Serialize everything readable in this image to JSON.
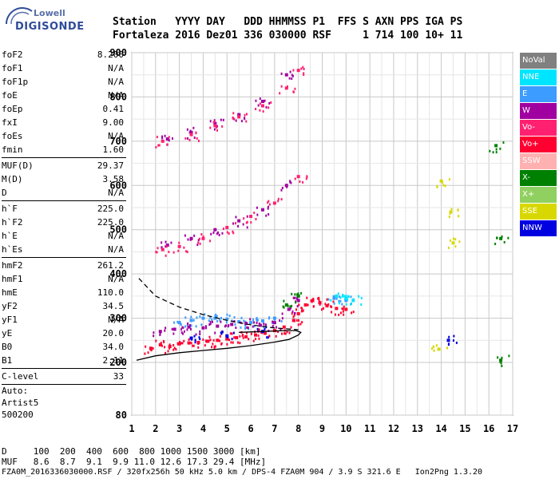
{
  "logo": {
    "line1": "Lowell",
    "line2": "DIGISONDE"
  },
  "header": {
    "line1": "Station   YYYY DAY   DDD HHMMSS P1  FFS S AXN PPS IGA PS",
    "line2": "Fortaleza 2016 Dez01 336 030000 RSF     1 714 100 10+ 11"
  },
  "params": [
    {
      "k": "foF2",
      "v": "8.200"
    },
    {
      "k": "foF1",
      "v": "N/A"
    },
    {
      "k": "foF1p",
      "v": "N/A"
    },
    {
      "k": "foE",
      "v": "N/A"
    },
    {
      "k": "foEp",
      "v": "0.41"
    },
    {
      "k": "fxI",
      "v": "9.00"
    },
    {
      "k": "foEs",
      "v": "N/A"
    },
    {
      "k": "fmin",
      "v": "1.60"
    },
    {
      "sep": true
    },
    {
      "k": "MUF(D)",
      "v": "29.37"
    },
    {
      "k": "M(D)",
      "v": "3.58"
    },
    {
      "k": "D",
      "v": "N/A"
    },
    {
      "sep": true
    },
    {
      "k": "h`F",
      "v": "225.0"
    },
    {
      "k": "h`F2",
      "v": "225.0"
    },
    {
      "k": "h`E",
      "v": "N/A"
    },
    {
      "k": "h`Es",
      "v": "N/A"
    },
    {
      "sep": true
    },
    {
      "k": "hmF2",
      "v": "261.2"
    },
    {
      "k": "hmF1",
      "v": "N/A"
    },
    {
      "k": "hmE",
      "v": "110.0"
    },
    {
      "k": "yF2",
      "v": "34.5"
    },
    {
      "k": "yF1",
      "v": "N/A"
    },
    {
      "k": "yE",
      "v": "20.0"
    },
    {
      "k": "B0",
      "v": "34.0"
    },
    {
      "k": "B1",
      "v": "2.11"
    },
    {
      "sep": true
    },
    {
      "k": "C-level",
      "v": "33"
    },
    {
      "sep": true
    }
  ],
  "auto": {
    "l1": "Auto:",
    "l2": "Artist5",
    "l3": "500200"
  },
  "bottom": {
    "d_row": "D     100  200  400  600  800 1000 1500 3000 [km]",
    "muf_row": "MUF   8.6  8.7  9.1  9.9 11.0 12.6 17.3 29.4 [MHz]",
    "file_row": "FZA0M_2016336030000.RSF / 320fx256h 50 kHz 5.0 km / DPS-4 FZA0M 904 / 3.9 S 321.6 E   Ion2Png 1.3.20"
  },
  "legend": [
    {
      "label": "NoVal",
      "color": "#808080"
    },
    {
      "label": "NNE",
      "color": "#00e5ff"
    },
    {
      "label": "E",
      "color": "#3c9cff"
    },
    {
      "label": "W",
      "color": "#a000a0"
    },
    {
      "label": "Vo-",
      "color": "#ff2070"
    },
    {
      "label": "Vo+",
      "color": "#ff0030"
    },
    {
      "label": "SSW",
      "color": "#ffb0b0"
    },
    {
      "label": "X-",
      "color": "#008000"
    },
    {
      "label": "X+",
      "color": "#90d060"
    },
    {
      "label": "SSE",
      "color": "#d8d800"
    },
    {
      "label": "NNW",
      "color": "#0000e0"
    }
  ],
  "chart_data": {
    "type": "scatter",
    "xlabel": "",
    "ylabel": "",
    "xlim": [
      1,
      17
    ],
    "ylim": [
      80,
      900
    ],
    "x_ticks": [
      1,
      2,
      3,
      4,
      5,
      6,
      7,
      8,
      9,
      10,
      11,
      12,
      13,
      14,
      15,
      16,
      17
    ],
    "y_ticks": [
      80,
      200,
      300,
      400,
      500,
      600,
      700,
      800,
      900
    ],
    "grid": true,
    "series": [
      {
        "name": "Vo+",
        "color": "#ff0030",
        "points": [
          [
            1.8,
            232
          ],
          [
            2.2,
            240
          ],
          [
            2.6,
            236
          ],
          [
            3.0,
            242
          ],
          [
            3.4,
            244
          ],
          [
            3.8,
            245
          ],
          [
            4.2,
            248
          ],
          [
            4.6,
            250
          ],
          [
            5.0,
            253
          ],
          [
            5.4,
            256
          ],
          [
            5.8,
            258
          ],
          [
            6.2,
            262
          ],
          [
            6.6,
            266
          ],
          [
            7.0,
            272
          ],
          [
            7.4,
            280
          ],
          [
            7.8,
            295
          ],
          [
            8.0,
            310
          ],
          [
            8.3,
            330
          ],
          [
            8.6,
            340
          ],
          [
            8.9,
            335
          ],
          [
            9.2,
            328
          ],
          [
            9.6,
            322
          ],
          [
            10.0,
            320
          ]
        ]
      },
      {
        "name": "E",
        "color": "#3c9cff",
        "points": [
          [
            3.0,
            290
          ],
          [
            3.5,
            295
          ],
          [
            4.0,
            300
          ],
          [
            4.5,
            300
          ],
          [
            5.0,
            298
          ],
          [
            5.5,
            292
          ],
          [
            6.0,
            290
          ],
          [
            6.5,
            294
          ],
          [
            7.0,
            300
          ],
          [
            9.5,
            345
          ],
          [
            10.0,
            340
          ]
        ]
      },
      {
        "name": "W",
        "color": "#a000a0",
        "points": [
          [
            2.2,
            270
          ],
          [
            2.8,
            275
          ],
          [
            3.4,
            280
          ],
          [
            4.0,
            278
          ],
          [
            4.6,
            282
          ],
          [
            5.2,
            286
          ],
          [
            5.8,
            288
          ],
          [
            6.4,
            284
          ],
          [
            7.0,
            290
          ],
          [
            7.6,
            320
          ],
          [
            8.0,
            340
          ],
          [
            2.5,
            465
          ],
          [
            3.5,
            480
          ],
          [
            4.5,
            500
          ],
          [
            5.5,
            520
          ],
          [
            6.5,
            545
          ],
          [
            7.5,
            600
          ],
          [
            2.5,
            705
          ],
          [
            3.5,
            720
          ],
          [
            4.5,
            740
          ],
          [
            5.5,
            760
          ],
          [
            6.5,
            790
          ],
          [
            7.5,
            850
          ]
        ]
      },
      {
        "name": "NNE",
        "color": "#00e5ff",
        "points": [
          [
            9.6,
            350
          ],
          [
            10.0,
            345
          ],
          [
            10.3,
            340
          ]
        ]
      },
      {
        "name": "X-",
        "color": "#008000",
        "points": [
          [
            7.5,
            330
          ],
          [
            8.0,
            350
          ],
          [
            16.3,
            690
          ],
          [
            16.5,
            480
          ],
          [
            16.5,
            205
          ]
        ]
      },
      {
        "name": "Vo-",
        "color": "#ff2070",
        "points": [
          [
            2.3,
            455
          ],
          [
            3.0,
            462
          ],
          [
            4.0,
            480
          ],
          [
            5.0,
            505
          ],
          [
            6.0,
            530
          ],
          [
            7.0,
            560
          ],
          [
            8.0,
            620
          ],
          [
            2.3,
            700
          ],
          [
            3.5,
            715
          ],
          [
            4.5,
            735
          ],
          [
            5.5,
            755
          ],
          [
            6.5,
            780
          ],
          [
            7.5,
            820
          ],
          [
            8.0,
            860
          ]
        ]
      },
      {
        "name": "SSE",
        "color": "#d8d800",
        "points": [
          [
            14.4,
            540
          ],
          [
            14.5,
            470
          ],
          [
            13.9,
            230
          ],
          [
            14.0,
            610
          ]
        ]
      },
      {
        "name": "NNW",
        "color": "#0000e0",
        "points": [
          [
            3.5,
            255
          ],
          [
            5.0,
            260
          ],
          [
            6.5,
            270
          ],
          [
            14.3,
            250
          ]
        ]
      }
    ],
    "curves": [
      {
        "name": "profile",
        "style": "solid",
        "points": [
          [
            1.2,
            205
          ],
          [
            2,
            215
          ],
          [
            3,
            222
          ],
          [
            4,
            227
          ],
          [
            5,
            232
          ],
          [
            6,
            238
          ],
          [
            7,
            246
          ],
          [
            7.6,
            252
          ],
          [
            8.0,
            262
          ],
          [
            8.1,
            268
          ],
          [
            7.9,
            272
          ],
          [
            7.4,
            272
          ],
          [
            6.5,
            270
          ],
          [
            5.5,
            268
          ]
        ]
      },
      {
        "name": "extrapolated",
        "style": "dashed",
        "points": [
          [
            1.3,
            390
          ],
          [
            2,
            350
          ],
          [
            3,
            325
          ],
          [
            4,
            308
          ],
          [
            5,
            295
          ],
          [
            6,
            285
          ],
          [
            7,
            278
          ],
          [
            8,
            274
          ]
        ]
      }
    ]
  }
}
